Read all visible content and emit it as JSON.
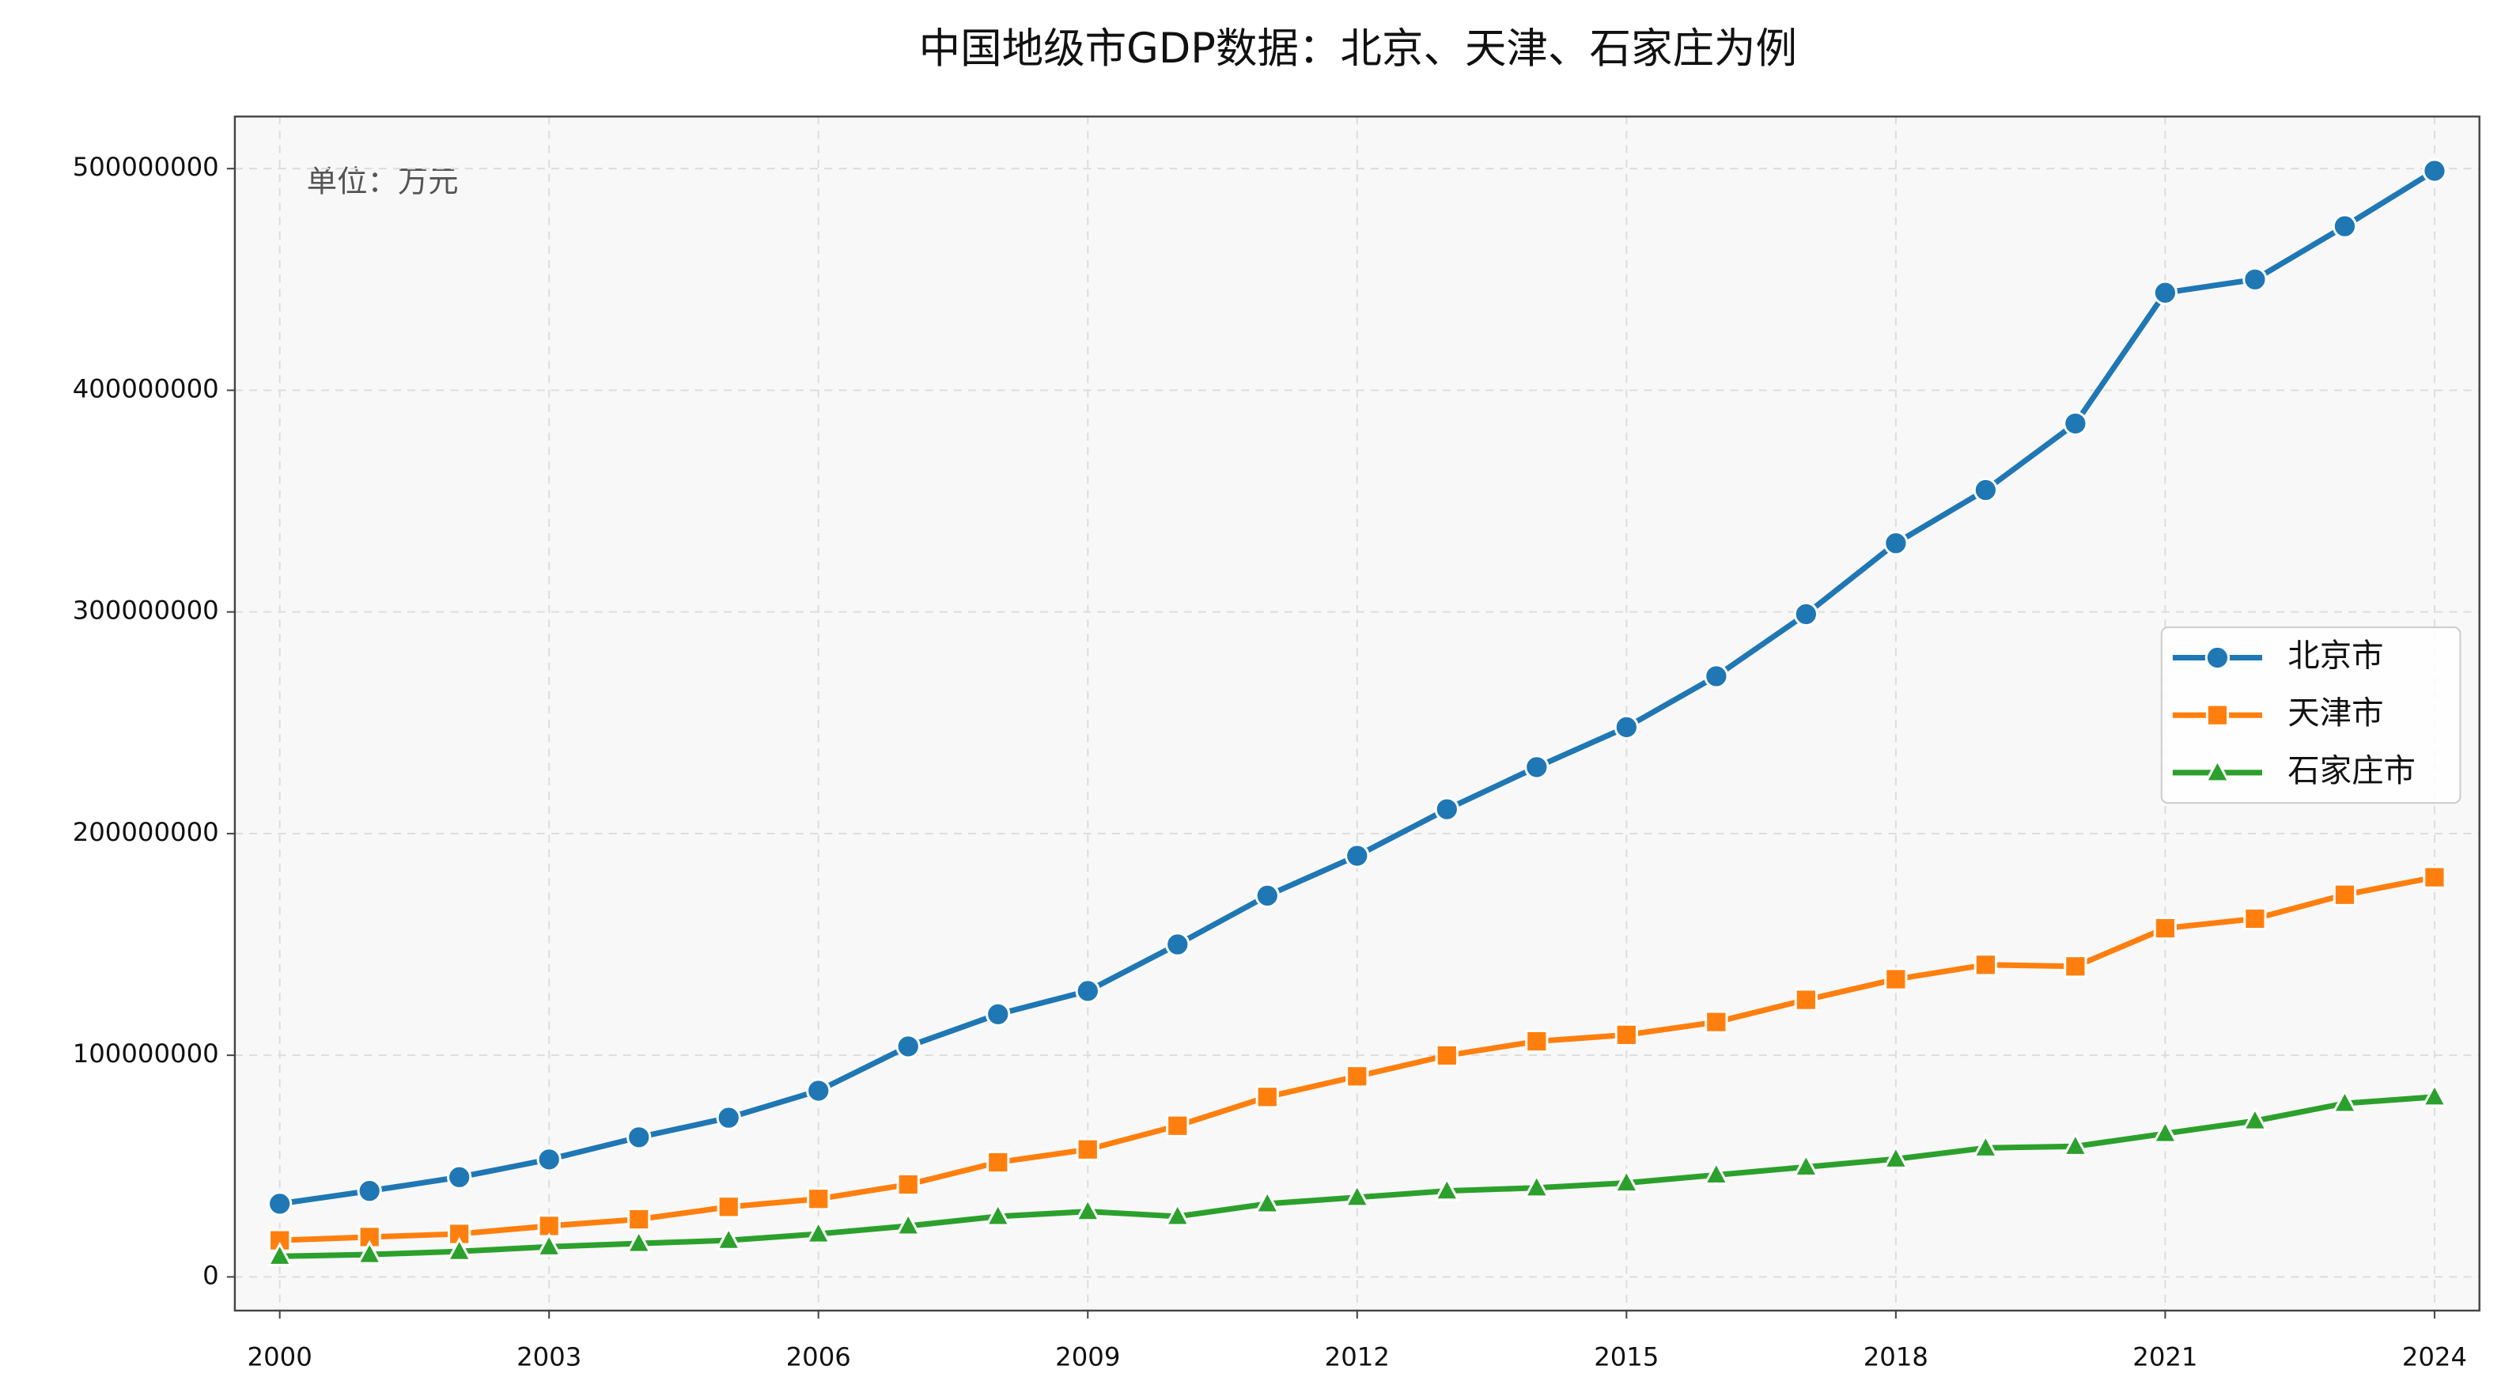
{
  "chart_data": {
    "type": "line",
    "title": "中国地级市GDP数据：北京、天津、石家庄为例",
    "annotation": "单位：万元",
    "x": [
      2000,
      2001,
      2002,
      2003,
      2004,
      2005,
      2006,
      2007,
      2008,
      2009,
      2010,
      2011,
      2012,
      2013,
      2014,
      2015,
      2016,
      2017,
      2018,
      2019,
      2020,
      2021,
      2022,
      2023,
      2024
    ],
    "series": [
      {
        "name": "北京市",
        "color": "#1f77b4",
        "marker": "circle",
        "values": [
          33000000,
          38800000,
          45000000,
          53000000,
          63000000,
          71800000,
          84000000,
          104000000,
          118500000,
          129000000,
          150000000,
          172000000,
          190000000,
          211000000,
          230000000,
          248000000,
          271000000,
          299000000,
          331000000,
          355000000,
          385000000,
          444000000,
          450000000,
          474000000,
          499000000
        ]
      },
      {
        "name": "天津市",
        "color": "#ff7f0e",
        "marker": "square",
        "values": [
          16500000,
          18000000,
          19400000,
          23000000,
          26000000,
          31600000,
          35200000,
          41700000,
          51700000,
          57500000,
          68200000,
          81200000,
          90500000,
          99900000,
          106300000,
          109200000,
          115000000,
          125000000,
          134300000,
          140800000,
          140100000,
          157300000,
          161600000,
          172400000,
          180300000
        ]
      },
      {
        "name": "石家庄市",
        "color": "#2ca02c",
        "marker": "triangle",
        "values": [
          9300000,
          10100000,
          11500000,
          13600000,
          15100000,
          16500000,
          19400000,
          23000000,
          27300000,
          29500000,
          27300000,
          33000000,
          35900000,
          38800000,
          40200000,
          42400000,
          46000000,
          49600000,
          53200000,
          58200000,
          58900000,
          64700000,
          70400000,
          78300000,
          81200000
        ]
      }
    ],
    "xlim": [
      1999.5,
      2024.5
    ],
    "xticks": [
      2000,
      2003,
      2006,
      2009,
      2012,
      2015,
      2018,
      2021,
      2024
    ],
    "ylim": [
      -15200000,
      523500000
    ],
    "yticks": [
      0,
      100000000,
      200000000,
      300000000,
      400000000,
      500000000
    ],
    "grid": true,
    "legend": "right"
  }
}
